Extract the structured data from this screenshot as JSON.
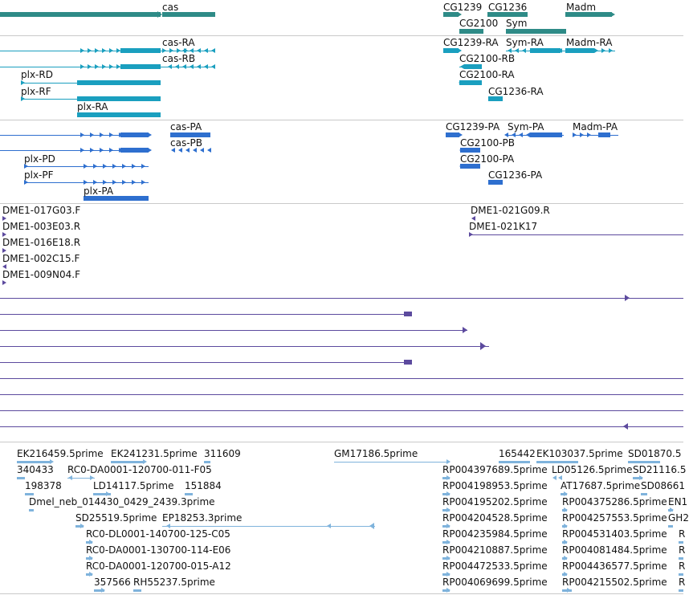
{
  "tracks": {
    "gene_summary": {
      "color": "#2e8b87",
      "labels": [
        "cas",
        "CG1239",
        "CG1236",
        "Madm",
        "CG2100",
        "Sym"
      ]
    },
    "transcripts_a": {
      "color": "#1a9fbf",
      "labels": [
        "cas-RA",
        "cas-RB",
        "plx-RD",
        "plx-RF",
        "plx-RA",
        "CG1239-RA",
        "Sym-RA",
        "Madm-RA",
        "CG2100-RB",
        "CG2100-RA",
        "CG1236-RA"
      ]
    },
    "transcripts_b": {
      "color": "#2e6fcf",
      "labels": [
        "cas-PA",
        "cas-PB",
        "plx-PD",
        "plx-PF",
        "plx-PA",
        "CG1239-PA",
        "Sym-PA",
        "Madm-PA",
        "CG2100-PB",
        "CG2100-PA",
        "CG1236-PA"
      ]
    },
    "clones": {
      "color": "#5c4a9e",
      "labels": [
        "DME1-017G03.F",
        "DME1-003E03.R",
        "DME1-016E18.R",
        "DME1-002C15.F",
        "DME1-009N04.F",
        "DME1-021G09.R",
        "DME1-021K17"
      ]
    },
    "ests": {
      "color": "#7fb3dc",
      "labels": [
        "EK216459.5prime",
        "EK241231.5prime",
        "311609",
        "GM17186.5prime",
        "165442",
        "EK103037.5prime",
        "SD01870.5",
        "340433",
        "RC0-DA0001-120700-011-F05",
        "RP004397689.5prime",
        "LD05126.5prime",
        "SD21116.5",
        "198378",
        "LD14117.5prime",
        "151884",
        "RP004198953.5prime",
        "AT17687.5prime",
        "SD08661",
        "Dmel_neb_014430_0429_2439.3prime",
        "RP004195202.5prime",
        "RP004375286.5prime",
        "EN1",
        "SD25519.5prime",
        "EP18253.3prime",
        "RP004204528.5prime",
        "RP004257553.5prime",
        "GH2",
        "RC0-DL0001-140700-125-C05",
        "RP004235984.5prime",
        "RP004531403.5prime",
        "R",
        "RC0-DA0001-130700-114-E06",
        "RP004210887.5prime",
        "RP004081484.5prime",
        "R",
        "RC0-DA0001-120700-015-A12",
        "RP004472533.5prime",
        "RP004436577.5prime",
        "R",
        "357566",
        "RH55237.5prime",
        "RP004069699.5prime",
        "RP004215502.5prime",
        "R"
      ]
    }
  }
}
